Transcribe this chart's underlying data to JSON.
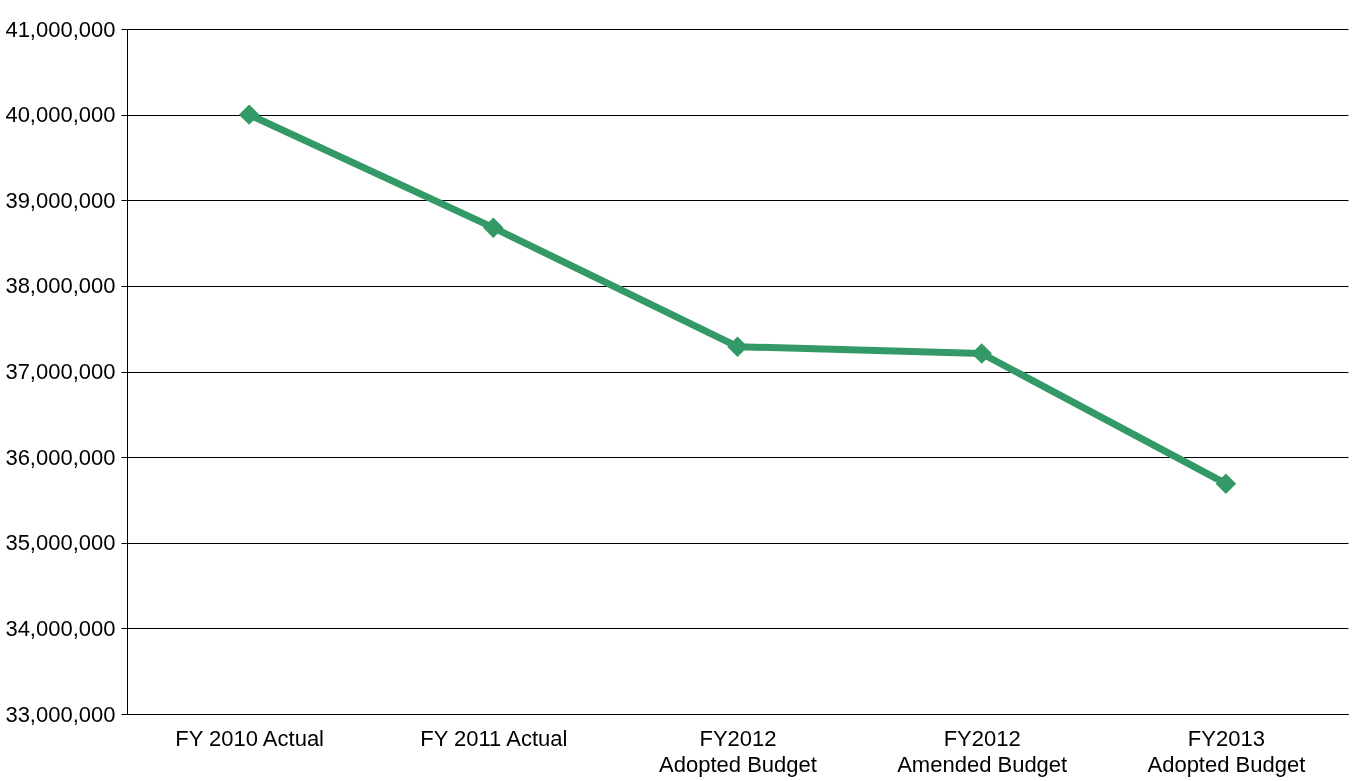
{
  "chart_data": {
    "type": "line",
    "categories": [
      "FY 2010 Actual",
      "FY 2011 Actual",
      "FY2012\nAdopted  Budget",
      "FY2012\nAmended Budget",
      "FY2013\nAdopted Budget"
    ],
    "series": [
      {
        "color": "#339966",
        "values": [
          40000000,
          38680000,
          37290000,
          37210000,
          35690000
        ]
      }
    ],
    "ylim": [
      33000000,
      41000000
    ],
    "yticks": [
      {
        "value": 33000000,
        "label": "33,000,000"
      },
      {
        "value": 34000000,
        "label": "34,000,000"
      },
      {
        "value": 35000000,
        "label": "35,000,000"
      },
      {
        "value": 36000000,
        "label": "36,000,000"
      },
      {
        "value": 37000000,
        "label": "37,000,000"
      },
      {
        "value": 38000000,
        "label": "38,000,000"
      },
      {
        "value": 39000000,
        "label": "39,000,000"
      },
      {
        "value": 40000000,
        "label": "40,000,000"
      },
      {
        "value": 41000000,
        "label": "41,000,000"
      }
    ],
    "grid": "y",
    "legend": false,
    "marker": "diamond",
    "line_style": "solid"
  }
}
